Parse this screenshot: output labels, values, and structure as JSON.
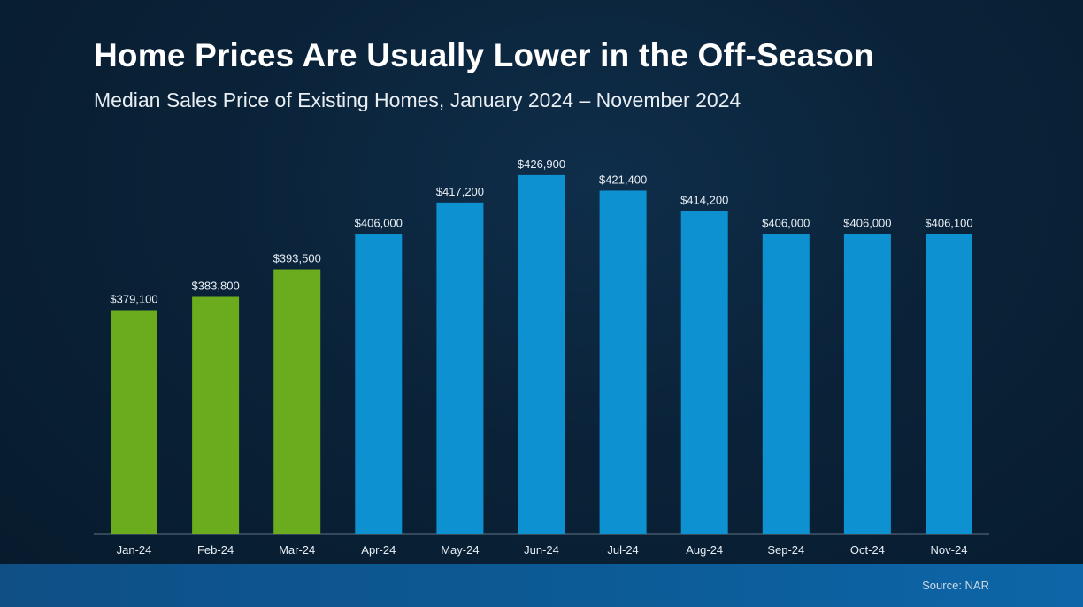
{
  "header": {
    "title": "Home Prices Are Usually Lower in the Off-Season",
    "subtitle": "Median Sales Price of Existing Homes, January 2024 – November 2024"
  },
  "footer": {
    "source": "Source: NAR"
  },
  "chart_data": {
    "type": "bar",
    "title": "Home Prices Are Usually Lower in the Off-Season",
    "subtitle": "Median Sales Price of Existing Homes, January 2024 – November 2024",
    "xlabel": "",
    "ylabel": "",
    "categories": [
      "Jan-24",
      "Feb-24",
      "Mar-24",
      "Apr-24",
      "May-24",
      "Jun-24",
      "Jul-24",
      "Aug-24",
      "Sep-24",
      "Oct-24",
      "Nov-24"
    ],
    "values": [
      379100,
      383800,
      393500,
      406000,
      417200,
      426900,
      421400,
      414200,
      406000,
      406000,
      406100
    ],
    "value_labels": [
      "$379,100",
      "$383,800",
      "$393,500",
      "$406,000",
      "$417,200",
      "$426,900",
      "$421,400",
      "$414,200",
      "$406,000",
      "$406,000",
      "$406,100"
    ],
    "ylim": [
      300000,
      430000
    ],
    "grid": false,
    "legend": "none",
    "colors": {
      "off_season": "#6aac1e",
      "peak_season": "#0e91d0",
      "axis": "#b9c6d3",
      "label": "#e8eef4"
    },
    "highlight": [
      "off_season",
      "off_season",
      "off_season",
      "peak_season",
      "peak_season",
      "peak_season",
      "peak_season",
      "peak_season",
      "peak_season",
      "peak_season",
      "peak_season"
    ]
  }
}
